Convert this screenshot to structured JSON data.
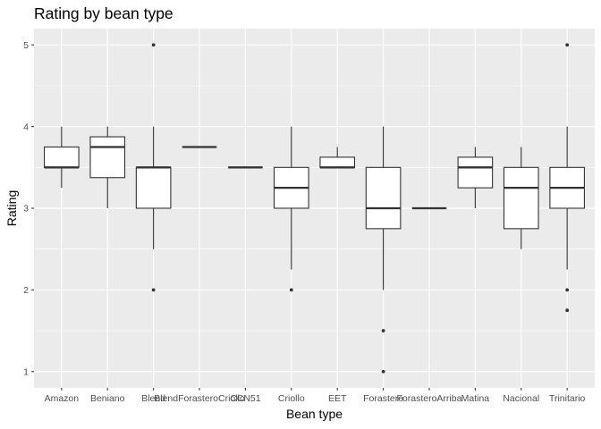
{
  "chart_data": {
    "type": "boxplot",
    "title": "Rating by bean type",
    "xlabel": "Bean type",
    "ylabel": "Rating",
    "ylim": [
      0.8,
      5.2
    ],
    "xlim": [
      0.4,
      12.6
    ],
    "yticks": [
      1,
      2,
      3,
      4,
      5
    ],
    "yminor": [
      1.5,
      2.5,
      3.5,
      4.5
    ],
    "grid": true,
    "legend": false,
    "categories": [
      "Amazon",
      "Beniano",
      "Blend",
      "BlendForasteroCriollo",
      "CCN51",
      "Criollo",
      "EET",
      "Forastero",
      "ForasteroArriba",
      "Matina",
      "Nacional",
      "Trinitario"
    ],
    "boxes": [
      {
        "label": "Amazon",
        "whisker_low": 3.25,
        "q1": 3.5,
        "median": 3.5,
        "q3": 3.75,
        "whisker_high": 4.0,
        "outliers": []
      },
      {
        "label": "Beniano",
        "whisker_low": 3.0,
        "q1": 3.375,
        "median": 3.75,
        "q3": 3.875,
        "whisker_high": 4.0,
        "outliers": []
      },
      {
        "label": "Blend",
        "whisker_low": 2.5,
        "q1": 3.0,
        "median": 3.5,
        "q3": 3.5,
        "whisker_high": 4.0,
        "outliers": [
          5.0,
          2.0
        ]
      },
      {
        "label": "BlendForasteroCriollo",
        "whisker_low": 3.75,
        "q1": 3.75,
        "median": 3.75,
        "q3": 3.75,
        "whisker_high": 3.75,
        "outliers": []
      },
      {
        "label": "CCN51",
        "whisker_low": 3.5,
        "q1": 3.5,
        "median": 3.5,
        "q3": 3.5,
        "whisker_high": 3.5,
        "outliers": []
      },
      {
        "label": "Criollo",
        "whisker_low": 2.25,
        "q1": 3.0,
        "median": 3.25,
        "q3": 3.5,
        "whisker_high": 4.0,
        "outliers": [
          2.0
        ]
      },
      {
        "label": "EET",
        "whisker_low": 3.5,
        "q1": 3.5,
        "median": 3.5,
        "q3": 3.625,
        "whisker_high": 3.75,
        "outliers": []
      },
      {
        "label": "Forastero",
        "whisker_low": 2.0,
        "q1": 2.75,
        "median": 3.0,
        "q3": 3.5,
        "whisker_high": 4.0,
        "outliers": [
          1.5,
          1.0
        ]
      },
      {
        "label": "ForasteroArriba",
        "whisker_low": 3.0,
        "q1": 3.0,
        "median": 3.0,
        "q3": 3.0,
        "whisker_high": 3.0,
        "outliers": []
      },
      {
        "label": "Matina",
        "whisker_low": 3.0,
        "q1": 3.25,
        "median": 3.5,
        "q3": 3.625,
        "whisker_high": 3.75,
        "outliers": []
      },
      {
        "label": "Nacional",
        "whisker_low": 2.5,
        "q1": 2.75,
        "median": 3.25,
        "q3": 3.5,
        "whisker_high": 3.75,
        "outliers": []
      },
      {
        "label": "Trinitario",
        "whisker_low": 2.25,
        "q1": 3.0,
        "median": 3.25,
        "q3": 3.5,
        "whisker_high": 4.0,
        "outliers": [
          5.0,
          2.0,
          1.75
        ]
      }
    ],
    "style": {
      "panel_bg": "#EBEBEB",
      "grid_color": "#FFFFFF",
      "box_fill": "#FFFFFF",
      "box_stroke": "#333333",
      "outlier_color": "#333333",
      "tick_color": "#333333",
      "axis_text_color": "#4D4D4D",
      "title_color": "#000000"
    }
  }
}
